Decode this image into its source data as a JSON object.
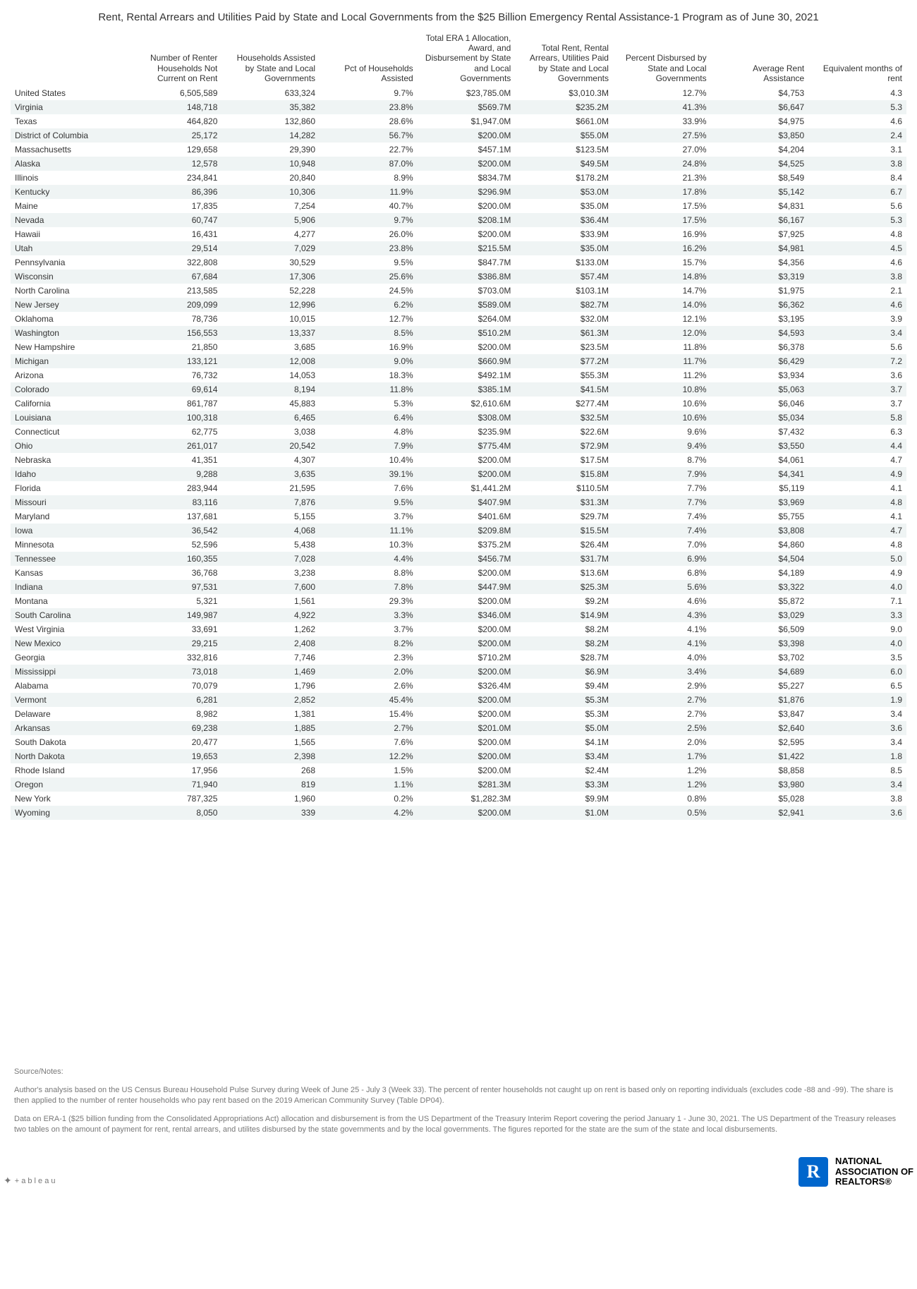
{
  "title": "Rent, Rental Arrears and Utilities Paid by State and Local Governments from the $25 Billion Emergency Rental Assistance-1 Program  as of June 30, 2021",
  "columns": [
    "",
    "Number of Renter Households Not Current on Rent",
    "Households Assisted by State and Local Governments",
    "Pct of Households Assisted",
    "Total ERA 1 Allocation, Award, and Disbursement by State and Local Governments",
    "Total  Rent, Rental Arrears, Utilities Paid by State and Local Governments",
    "Percent Disbursed by State and Local Governments",
    "Average Rent Assistance",
    "Equivalent months of rent"
  ],
  "rows": [
    [
      "United States",
      "6,505,589",
      "633,324",
      "9.7%",
      "$23,785.0M",
      "$3,010.3M",
      "12.7%",
      "$4,753",
      "4.3"
    ],
    [
      "Virginia",
      "148,718",
      "35,382",
      "23.8%",
      "$569.7M",
      "$235.2M",
      "41.3%",
      "$6,647",
      "5.3"
    ],
    [
      "Texas",
      "464,820",
      "132,860",
      "28.6%",
      "$1,947.0M",
      "$661.0M",
      "33.9%",
      "$4,975",
      "4.6"
    ],
    [
      "District of Columbia",
      "25,172",
      "14,282",
      "56.7%",
      "$200.0M",
      "$55.0M",
      "27.5%",
      "$3,850",
      "2.4"
    ],
    [
      "Massachusetts",
      "129,658",
      "29,390",
      "22.7%",
      "$457.1M",
      "$123.5M",
      "27.0%",
      "$4,204",
      "3.1"
    ],
    [
      "Alaska",
      "12,578",
      "10,948",
      "87.0%",
      "$200.0M",
      "$49.5M",
      "24.8%",
      "$4,525",
      "3.8"
    ],
    [
      "Illinois",
      "234,841",
      "20,840",
      "8.9%",
      "$834.7M",
      "$178.2M",
      "21.3%",
      "$8,549",
      "8.4"
    ],
    [
      "Kentucky",
      "86,396",
      "10,306",
      "11.9%",
      "$296.9M",
      "$53.0M",
      "17.8%",
      "$5,142",
      "6.7"
    ],
    [
      "Maine",
      "17,835",
      "7,254",
      "40.7%",
      "$200.0M",
      "$35.0M",
      "17.5%",
      "$4,831",
      "5.6"
    ],
    [
      "Nevada",
      "60,747",
      "5,906",
      "9.7%",
      "$208.1M",
      "$36.4M",
      "17.5%",
      "$6,167",
      "5.3"
    ],
    [
      "Hawaii",
      "16,431",
      "4,277",
      "26.0%",
      "$200.0M",
      "$33.9M",
      "16.9%",
      "$7,925",
      "4.8"
    ],
    [
      "Utah",
      "29,514",
      "7,029",
      "23.8%",
      "$215.5M",
      "$35.0M",
      "16.2%",
      "$4,981",
      "4.5"
    ],
    [
      "Pennsylvania",
      "322,808",
      "30,529",
      "9.5%",
      "$847.7M",
      "$133.0M",
      "15.7%",
      "$4,356",
      "4.6"
    ],
    [
      "Wisconsin",
      "67,684",
      "17,306",
      "25.6%",
      "$386.8M",
      "$57.4M",
      "14.8%",
      "$3,319",
      "3.8"
    ],
    [
      "North Carolina",
      "213,585",
      "52,228",
      "24.5%",
      "$703.0M",
      "$103.1M",
      "14.7%",
      "$1,975",
      "2.1"
    ],
    [
      "New Jersey",
      "209,099",
      "12,996",
      "6.2%",
      "$589.0M",
      "$82.7M",
      "14.0%",
      "$6,362",
      "4.6"
    ],
    [
      "Oklahoma",
      "78,736",
      "10,015",
      "12.7%",
      "$264.0M",
      "$32.0M",
      "12.1%",
      "$3,195",
      "3.9"
    ],
    [
      "Washington",
      "156,553",
      "13,337",
      "8.5%",
      "$510.2M",
      "$61.3M",
      "12.0%",
      "$4,593",
      "3.4"
    ],
    [
      "New Hampshire",
      "21,850",
      "3,685",
      "16.9%",
      "$200.0M",
      "$23.5M",
      "11.8%",
      "$6,378",
      "5.6"
    ],
    [
      "Michigan",
      "133,121",
      "12,008",
      "9.0%",
      "$660.9M",
      "$77.2M",
      "11.7%",
      "$6,429",
      "7.2"
    ],
    [
      "Arizona",
      "76,732",
      "14,053",
      "18.3%",
      "$492.1M",
      "$55.3M",
      "11.2%",
      "$3,934",
      "3.6"
    ],
    [
      "Colorado",
      "69,614",
      "8,194",
      "11.8%",
      "$385.1M",
      "$41.5M",
      "10.8%",
      "$5,063",
      "3.7"
    ],
    [
      "California",
      "861,787",
      "45,883",
      "5.3%",
      "$2,610.6M",
      "$277.4M",
      "10.6%",
      "$6,046",
      "3.7"
    ],
    [
      "Louisiana",
      "100,318",
      "6,465",
      "6.4%",
      "$308.0M",
      "$32.5M",
      "10.6%",
      "$5,034",
      "5.8"
    ],
    [
      "Connecticut",
      "62,775",
      "3,038",
      "4.8%",
      "$235.9M",
      "$22.6M",
      "9.6%",
      "$7,432",
      "6.3"
    ],
    [
      "Ohio",
      "261,017",
      "20,542",
      "7.9%",
      "$775.4M",
      "$72.9M",
      "9.4%",
      "$3,550",
      "4.4"
    ],
    [
      "Nebraska",
      "41,351",
      "4,307",
      "10.4%",
      "$200.0M",
      "$17.5M",
      "8.7%",
      "$4,061",
      "4.7"
    ],
    [
      "Idaho",
      "9,288",
      "3,635",
      "39.1%",
      "$200.0M",
      "$15.8M",
      "7.9%",
      "$4,341",
      "4.9"
    ],
    [
      "Florida",
      "283,944",
      "21,595",
      "7.6%",
      "$1,441.2M",
      "$110.5M",
      "7.7%",
      "$5,119",
      "4.1"
    ],
    [
      "Missouri",
      "83,116",
      "7,876",
      "9.5%",
      "$407.9M",
      "$31.3M",
      "7.7%",
      "$3,969",
      "4.8"
    ],
    [
      "Maryland",
      "137,681",
      "5,155",
      "3.7%",
      "$401.6M",
      "$29.7M",
      "7.4%",
      "$5,755",
      "4.1"
    ],
    [
      "Iowa",
      "36,542",
      "4,068",
      "11.1%",
      "$209.8M",
      "$15.5M",
      "7.4%",
      "$3,808",
      "4.7"
    ],
    [
      "Minnesota",
      "52,596",
      "5,438",
      "10.3%",
      "$375.2M",
      "$26.4M",
      "7.0%",
      "$4,860",
      "4.8"
    ],
    [
      "Tennessee",
      "160,355",
      "7,028",
      "4.4%",
      "$456.7M",
      "$31.7M",
      "6.9%",
      "$4,504",
      "5.0"
    ],
    [
      "Kansas",
      "36,768",
      "3,238",
      "8.8%",
      "$200.0M",
      "$13.6M",
      "6.8%",
      "$4,189",
      "4.9"
    ],
    [
      "Indiana",
      "97,531",
      "7,600",
      "7.8%",
      "$447.9M",
      "$25.3M",
      "5.6%",
      "$3,322",
      "4.0"
    ],
    [
      "Montana",
      "5,321",
      "1,561",
      "29.3%",
      "$200.0M",
      "$9.2M",
      "4.6%",
      "$5,872",
      "7.1"
    ],
    [
      "South Carolina",
      "149,987",
      "4,922",
      "3.3%",
      "$346.0M",
      "$14.9M",
      "4.3%",
      "$3,029",
      "3.3"
    ],
    [
      "West Virginia",
      "33,691",
      "1,262",
      "3.7%",
      "$200.0M",
      "$8.2M",
      "4.1%",
      "$6,509",
      "9.0"
    ],
    [
      "New Mexico",
      "29,215",
      "2,408",
      "8.2%",
      "$200.0M",
      "$8.2M",
      "4.1%",
      "$3,398",
      "4.0"
    ],
    [
      "Georgia",
      "332,816",
      "7,746",
      "2.3%",
      "$710.2M",
      "$28.7M",
      "4.0%",
      "$3,702",
      "3.5"
    ],
    [
      "Mississippi",
      "73,018",
      "1,469",
      "2.0%",
      "$200.0M",
      "$6.9M",
      "3.4%",
      "$4,689",
      "6.0"
    ],
    [
      "Alabama",
      "70,079",
      "1,796",
      "2.6%",
      "$326.4M",
      "$9.4M",
      "2.9%",
      "$5,227",
      "6.5"
    ],
    [
      "Vermont",
      "6,281",
      "2,852",
      "45.4%",
      "$200.0M",
      "$5.3M",
      "2.7%",
      "$1,876",
      "1.9"
    ],
    [
      "Delaware",
      "8,982",
      "1,381",
      "15.4%",
      "$200.0M",
      "$5.3M",
      "2.7%",
      "$3,847",
      "3.4"
    ],
    [
      "Arkansas",
      "69,238",
      "1,885",
      "2.7%",
      "$201.0M",
      "$5.0M",
      "2.5%",
      "$2,640",
      "3.6"
    ],
    [
      "South Dakota",
      "20,477",
      "1,565",
      "7.6%",
      "$200.0M",
      "$4.1M",
      "2.0%",
      "$2,595",
      "3.4"
    ],
    [
      "North Dakota",
      "19,653",
      "2,398",
      "12.2%",
      "$200.0M",
      "$3.4M",
      "1.7%",
      "$1,422",
      "1.8"
    ],
    [
      "Rhode Island",
      "17,956",
      "268",
      "1.5%",
      "$200.0M",
      "$2.4M",
      "1.2%",
      "$8,858",
      "8.5"
    ],
    [
      "Oregon",
      "71,940",
      "819",
      "1.1%",
      "$281.3M",
      "$3.3M",
      "1.2%",
      "$3,980",
      "3.4"
    ],
    [
      "New York",
      "787,325",
      "1,960",
      "0.2%",
      "$1,282.3M",
      "$9.9M",
      "0.8%",
      "$5,028",
      "3.8"
    ],
    [
      "Wyoming",
      "8,050",
      "339",
      "4.2%",
      "$200.0M",
      "$1.0M",
      "0.5%",
      "$2,941",
      "3.6"
    ]
  ],
  "notes": {
    "title": "Source/Notes:",
    "p1": "Author's analysis based on the US Census Bureau Household Pulse Survey during Week of June 25 - July 3 (Week 33). The percent of renter households not caught  up on rent is based only on reporting individuals (excludes code -88 and -99). The share is then applied to the number of renter households who pay rent based on the 2019 American Community Survey (Table DP04).",
    "p2": "Data on ERA-1  ($25 billion funding from the Consolidated Appropriations Act) allocation and disbursement is from the US Department of the Treasury Interim Report covering the period  January 1 - June 30, 2021. The US Department of the Treasury releases two tables on the amount of payment for rent, rental arrears, and utilites disbursed by the state governments and by the local governments.  The figures reported for the state are the sum of the state and local disbursements."
  },
  "logo_text": "NATIONAL ASSOCIATION OF REALTORS®",
  "tableau_text": "+ a b l e a u"
}
